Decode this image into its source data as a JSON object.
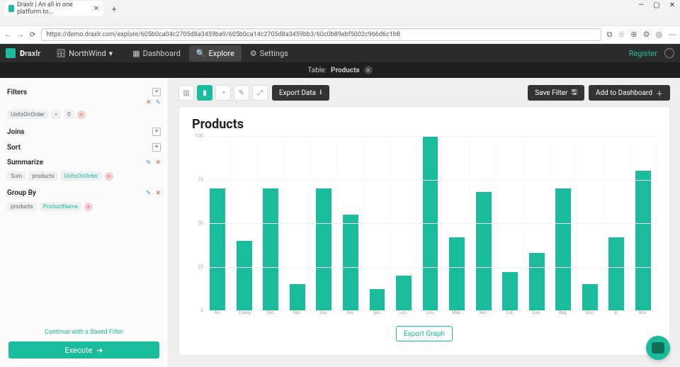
{
  "browser": {
    "tab_title": "Draxlr | An all in one platform to...",
    "url": "https://demo.draxlr.com/explore/605b0ca04c2705d8a3459ba9/605b0ca14c2705d8a3459bb3/60c0b89ebf5002c966d6c1b8",
    "window_controls": {
      "min": "—",
      "max": "▢",
      "close": "✕"
    },
    "nav": {
      "back": "←",
      "forward": "→",
      "refresh": "⟳",
      "lock": "🔒"
    },
    "right_icons": [
      "⧉",
      "☆",
      "⊕",
      "⚙",
      "◎",
      "⋯"
    ]
  },
  "app": {
    "brand_prefix": "D",
    "brand_rest": "raxlr",
    "db_icon": "🗄",
    "db_name": "NorthWind",
    "db_caret": "▾",
    "nav": [
      {
        "label": "Dashboard",
        "icon": "▦",
        "active": false
      },
      {
        "label": "Explore",
        "icon": "🔍",
        "active": true
      },
      {
        "label": "Settings",
        "icon": "⚙",
        "active": false
      }
    ],
    "register": "Register"
  },
  "subbar": {
    "prefix": "Table:",
    "table": "Products",
    "close": "✕"
  },
  "sidebar": {
    "filters_label": "Filters",
    "filter_chip": {
      "field": "UnitsOnOrder",
      "op": ">",
      "value": "0"
    },
    "joins_label": "Joins",
    "sort_label": "Sort",
    "summarize_label": "Summarize",
    "summarize_chip": {
      "agg": "Sum",
      "table": "products",
      "field": "UnitsOnOrder"
    },
    "groupby_label": "Group By",
    "groupby_chip": {
      "table": "products",
      "field": "ProductName"
    },
    "saved_filter": "Continue with a Saved Filter",
    "execute": "Execute"
  },
  "toolbar": {
    "viz_icons": [
      "▥",
      "▮",
      "◔",
      "✎",
      "⤢"
    ],
    "active_viz_index": 1,
    "export_data": "Export Data",
    "save_filter": "Save Filter",
    "add_dashboard": "Add to Dashboard"
  },
  "chart": {
    "title": "Products",
    "type": "bar",
    "y_max": 100,
    "y_ticks": [
      0,
      25,
      50,
      75,
      100
    ],
    "bar_color": "#1abc9c",
    "grid_color": "#f2f2f2",
    "categories": [
      "An..",
      "Chang",
      "Chc..",
      "Gnc..",
      "Gor..",
      "Gra..",
      "Ipo..",
      "Lon..",
      "Lou..",
      "Mas..",
      "Nor..",
      "Out..",
      "Que..",
      "Røg..",
      "Sco..",
      "Sr..",
      "Wm.."
    ],
    "values": [
      70,
      40,
      70,
      15,
      70,
      55,
      12,
      20,
      100,
      42,
      68,
      22,
      33,
      70,
      15,
      42,
      80
    ],
    "export_graph": "Export Graph"
  }
}
